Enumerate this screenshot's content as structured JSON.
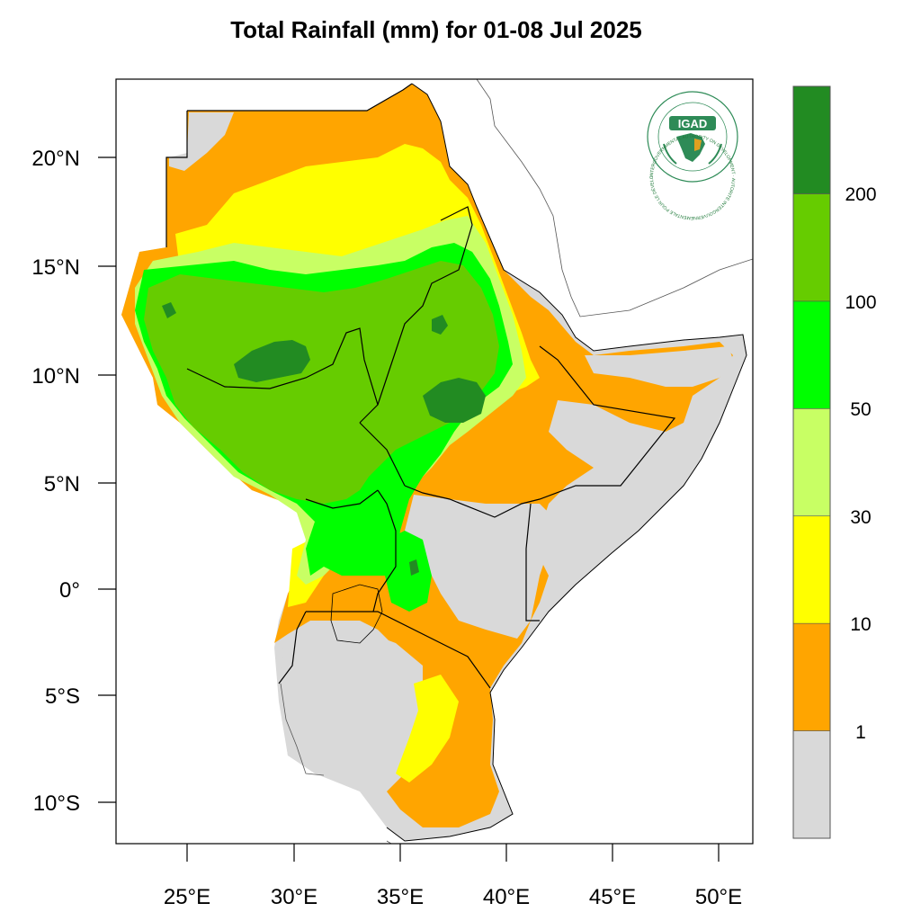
{
  "title": "Total Rainfall (mm) for 01-08 Jul 2025",
  "lat_ticks": [
    "20°N",
    "15°N",
    "10°N",
    "5°N",
    "0°",
    "5°S",
    "10°S"
  ],
  "lon_ticks": [
    "25°E",
    "30°E",
    "35°E",
    "40°E",
    "45°E",
    "50°E"
  ],
  "colorbar": {
    "classes": [
      {
        "color": "#d9d9d9"
      },
      {
        "color": "#ffa500"
      },
      {
        "color": "#ffff00"
      },
      {
        "color": "#c8ff64"
      },
      {
        "color": "#00ff00"
      },
      {
        "color": "#66cc00"
      },
      {
        "color": "#228b22"
      }
    ],
    "labels": [
      "1",
      "10",
      "30",
      "50",
      "100",
      "200"
    ]
  },
  "logo": {
    "text": "IGAD",
    "ring_text": "INTERGOVERNMENTAL AUTHORITY ON DEVELOPMENT · AUTORITÉ INTERGOUVERNEMENTALE POUR LE DÉVELOPPEMENT"
  }
}
